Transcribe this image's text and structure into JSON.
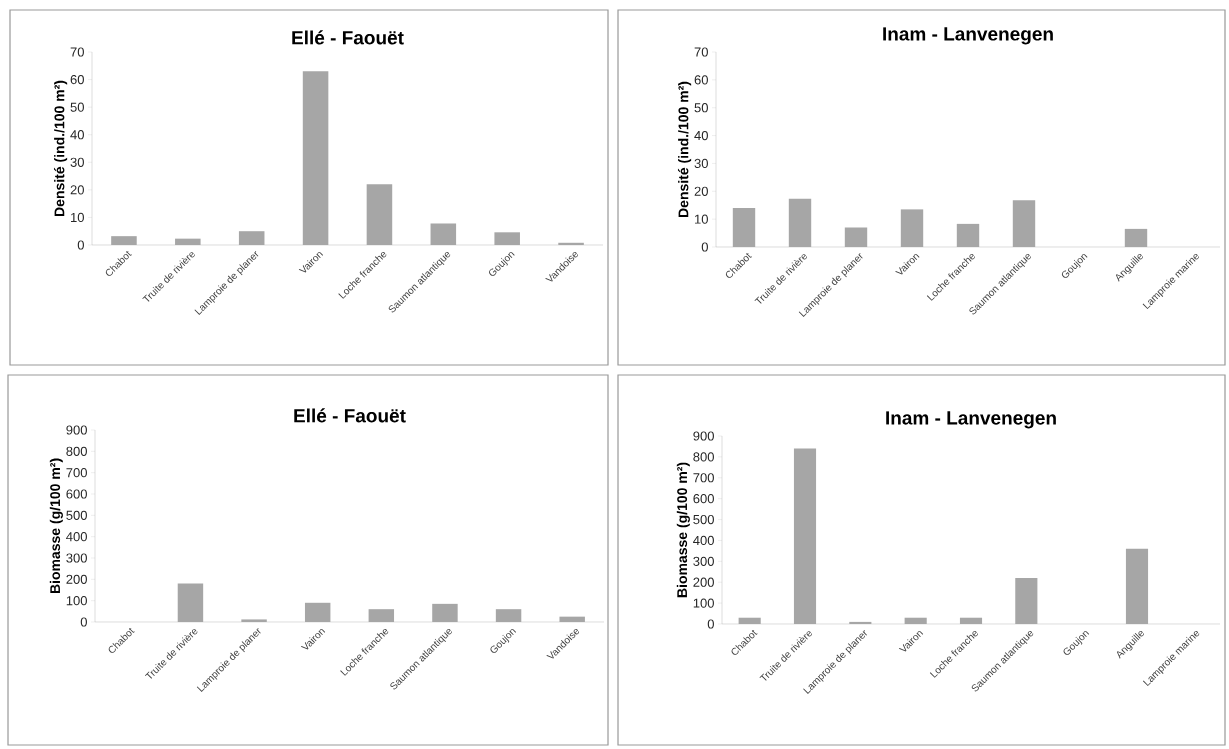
{
  "chart_data": [
    {
      "type": "bar",
      "title": "Ellé - Faouët",
      "ylabel": "Densité (ind./100 m²)",
      "categories": [
        "Chabot",
        "Truite de rivière",
        "Lamproie de planer",
        "Vairon",
        "Loche franche",
        "Saumon atlantique",
        "Goujon",
        "Vandoise"
      ],
      "values": [
        3.2,
        2.3,
        5,
        63,
        22,
        7.8,
        4.6,
        0.8
      ],
      "color": "#a6a6a6",
      "ylim": [
        0,
        70
      ],
      "yticks": [
        0,
        10,
        20,
        30,
        40,
        50,
        60,
        70
      ],
      "grid": false
    },
    {
      "type": "bar",
      "title": "Inam - Lanvenegen",
      "ylabel": "Densité (ind./100 m²)",
      "categories": [
        "Chabot",
        "Truite de rivière",
        "Lamproie de planer",
        "Vairon",
        "Loche franche",
        "Saumon atlantique",
        "Goujon",
        "Anguille",
        "Lamproie marine"
      ],
      "values": [
        14,
        17.3,
        7,
        13.5,
        8.3,
        16.8,
        0,
        6.5,
        0
      ],
      "color": "#a6a6a6",
      "ylim": [
        0,
        70
      ],
      "yticks": [
        0,
        10,
        20,
        30,
        40,
        50,
        60,
        70
      ],
      "grid": false
    },
    {
      "type": "bar",
      "title": "Ellé - Faouët",
      "ylabel": "Biomasse (g/100 m²)",
      "categories": [
        "Chabot",
        "Truite de rivière",
        "Lamproie de planer",
        "Vairon",
        "Loche franche",
        "Saumon atlantique",
        "Goujon",
        "Vandoise"
      ],
      "values": [
        0,
        180,
        12,
        90,
        60,
        85,
        60,
        25
      ],
      "color": "#a6a6a6",
      "ylim": [
        0,
        900
      ],
      "yticks": [
        0,
        100,
        200,
        300,
        400,
        500,
        600,
        700,
        800,
        900
      ],
      "grid": false
    },
    {
      "type": "bar",
      "title": "Inam - Lanvenegen",
      "ylabel": "Biomasse (g/100 m²)",
      "categories": [
        "Chabot",
        "Truite de rivière",
        "Lamproie de planer",
        "Vairon",
        "Loche franche",
        "Saumon atlantique",
        "Goujon",
        "Anguille",
        "Lamproie marine"
      ],
      "values": [
        30,
        840,
        10,
        30,
        30,
        220,
        0,
        360,
        0
      ],
      "color": "#a6a6a6",
      "ylim": [
        0,
        900
      ],
      "yticks": [
        0,
        100,
        200,
        300,
        400,
        500,
        600,
        700,
        800,
        900
      ],
      "grid": false
    }
  ]
}
